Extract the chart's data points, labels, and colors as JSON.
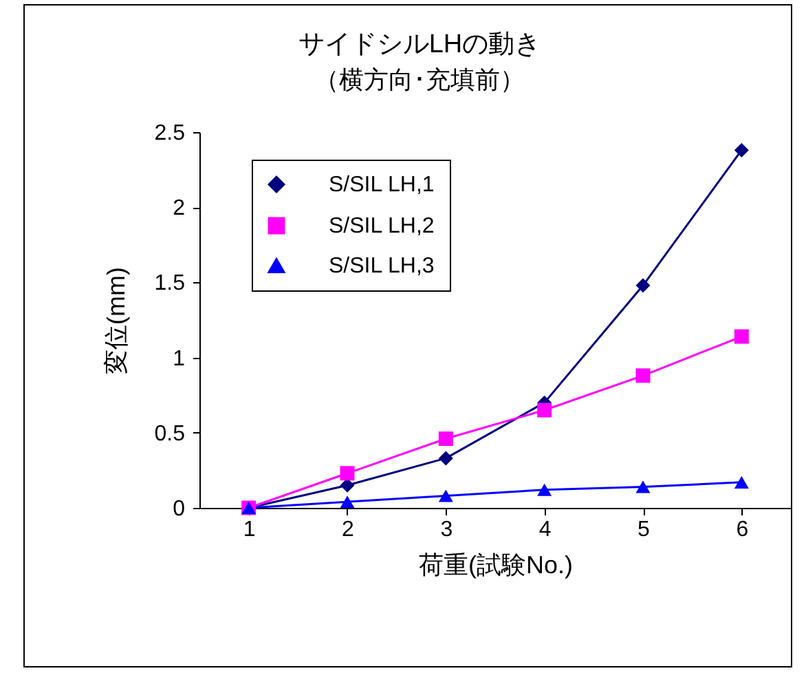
{
  "chart_data": {
    "type": "line",
    "title": "サイドシルLHの動き",
    "subtitle": "（横方向･充填前）",
    "xlabel": "荷重(試験No.)",
    "ylabel": "変位(mm)",
    "categories": [
      "1",
      "2",
      "3",
      "4",
      "5",
      "6"
    ],
    "series": [
      {
        "name": "S/SIL LH,1",
        "color": "#000080",
        "marker": "diamond",
        "values": [
          0,
          0.15,
          0.33,
          0.7,
          1.48,
          2.38
        ]
      },
      {
        "name": "S/SIL LH,2",
        "color": "#ff00ff",
        "marker": "square",
        "values": [
          0,
          0.23,
          0.46,
          0.65,
          0.88,
          1.14
        ]
      },
      {
        "name": "S/SIL LH,3",
        "color": "#0000ff",
        "marker": "triangle",
        "values": [
          0,
          0.04,
          0.08,
          0.12,
          0.14,
          0.17
        ]
      }
    ],
    "ylim": [
      0,
      2.5
    ],
    "yticks": [
      0,
      0.5,
      1,
      1.5,
      2,
      2.5
    ],
    "grid": false,
    "legend": "top left",
    "line_style": "solid"
  }
}
